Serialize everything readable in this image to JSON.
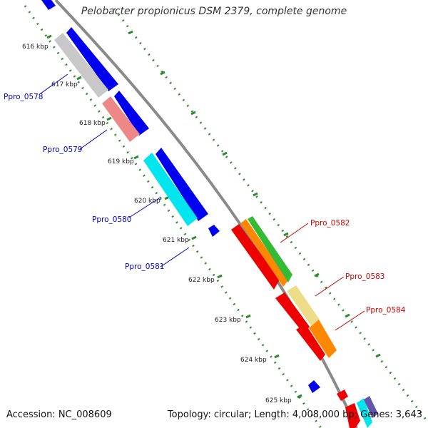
{
  "title": "Pelobacter propionicus DSM 2379, complete genome",
  "accession": "Accession: NC_008609",
  "topology": "Topology: circular; Length: 4,008,000 bp; Genes: 3,643",
  "colors": {
    "backbone": "#8a8a8a",
    "tick_dots": "#2e8b2e",
    "label_blue": "#0000cc",
    "label_red": "#cc0000"
  },
  "ticks": [
    {
      "label": "616 kbp"
    },
    {
      "label": "617 kbp"
    },
    {
      "label": "618 kbp"
    },
    {
      "label": "619 kbp"
    },
    {
      "label": "620 kbp"
    },
    {
      "label": "621 kbp"
    },
    {
      "label": "622 kbp"
    },
    {
      "label": "623 kbp"
    },
    {
      "label": "624 kbp"
    },
    {
      "label": "625 kbp"
    }
  ],
  "gene_labels": [
    {
      "text": "Ppro_0578",
      "color": "blue"
    },
    {
      "text": "Ppro_0579",
      "color": "blue"
    },
    {
      "text": "Ppro_0580",
      "color": "blue"
    },
    {
      "text": "Ppro_0581",
      "color": "blue"
    },
    {
      "text": "Ppro_0582",
      "color": "red"
    },
    {
      "text": "Ppro_0583",
      "color": "red"
    },
    {
      "text": "Ppro_0584",
      "color": "red"
    }
  ]
}
